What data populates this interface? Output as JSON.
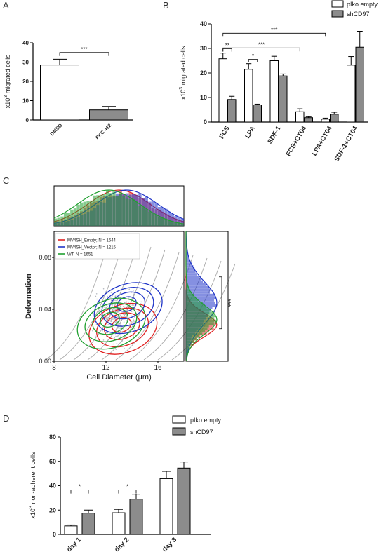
{
  "panels": {
    "A": "A",
    "B": "B",
    "C": "C",
    "D": "D"
  },
  "colors": {
    "white_bar": "#ffffff",
    "gray_bar": "#8c8c8c",
    "empty": "#e02020",
    "vector": "#2035c8",
    "wt": "#20a030",
    "contour_gray": "#9a9a9a",
    "scatter": "#9aa0a8"
  },
  "chart_data": [
    {
      "panel": "A",
      "type": "bar",
      "categories": [
        "DMSO",
        "PKC 412"
      ],
      "values": [
        28.5,
        5.2
      ],
      "errors": [
        3.0,
        1.8
      ],
      "bar_colors": [
        "white_bar",
        "gray_bar"
      ],
      "ylabel": "x10³ migrated cells",
      "ylim": [
        0,
        40
      ],
      "yticks": [
        "0",
        "10",
        "20",
        "30",
        "40"
      ],
      "significance": [
        {
          "from": 0,
          "to": 1,
          "label": "***"
        }
      ]
    },
    {
      "panel": "B",
      "type": "bar",
      "categories": [
        "FCS",
        "LPA",
        "SDF-1",
        "FCS+CT04",
        "LPA+CT04",
        "SDF-1+CT04"
      ],
      "series": [
        {
          "name": "pIko empty",
          "values": [
            25.8,
            21.5,
            25.0,
            4.2,
            1.2,
            23.2
          ],
          "errors": [
            2.3,
            2.3,
            1.8,
            1.2,
            0.4,
            3.5
          ]
        },
        {
          "name": "shCD97",
          "values": [
            9.2,
            7.0,
            18.8,
            1.8,
            3.2,
            30.5
          ],
          "errors": [
            1.3,
            0.3,
            0.8,
            0.4,
            0.8,
            6.5
          ]
        }
      ],
      "ylabel": "x10³ migrated cells",
      "ylim": [
        0,
        40
      ],
      "yticks": [
        "0",
        "10",
        "20",
        "30",
        "40"
      ],
      "significance": [
        {
          "type": "within",
          "category": 0,
          "label": "**"
        },
        {
          "type": "within",
          "category": 1,
          "label": "*"
        },
        {
          "type": "between",
          "from": 0,
          "to": 3,
          "label": "***"
        },
        {
          "type": "between",
          "from": 0,
          "to": 4,
          "label": "***"
        }
      ]
    },
    {
      "panel": "C",
      "type": "scatter",
      "legend": [
        "MV4SH_Empty; N = 1644",
        "MV4SH_Vector; N = 1215",
        "WT; N = 1651"
      ],
      "legend_colors": [
        "empty",
        "vector",
        "wt"
      ],
      "xlabel": "Cell Diameter (µm)",
      "ylabel": "Deformation",
      "xlim": [
        8,
        18
      ],
      "ylim": [
        0,
        0.1
      ],
      "xticks": [
        "8",
        "12",
        "16"
      ],
      "yticks": [
        "0.00",
        "0.04",
        "0.08"
      ],
      "contour_centers": [
        {
          "x": 13.2,
          "y": 0.028,
          "color": "empty"
        },
        {
          "x": 13.6,
          "y": 0.044,
          "color": "vector"
        },
        {
          "x": 12.3,
          "y": 0.032,
          "color": "wt"
        }
      ],
      "significance_label": "***"
    },
    {
      "panel": "D",
      "type": "bar",
      "categories": [
        "day 1",
        "day 2",
        "day 3"
      ],
      "series": [
        {
          "name": "pIko empty",
          "values": [
            7.0,
            17.8,
            45.8
          ],
          "errors": [
            0.8,
            2.8,
            6.0
          ]
        },
        {
          "name": "shCD97",
          "values": [
            17.5,
            29.0,
            54.5
          ],
          "errors": [
            2.5,
            4.0,
            5.0
          ]
        }
      ],
      "ylabel": "x10³ non-adherent cells",
      "ylim": [
        0,
        80
      ],
      "yticks": [
        "0",
        "20",
        "40",
        "60",
        "80"
      ],
      "significance": [
        {
          "type": "within",
          "category": 0,
          "label": "*"
        },
        {
          "type": "within",
          "category": 1,
          "label": "*"
        }
      ]
    }
  ]
}
